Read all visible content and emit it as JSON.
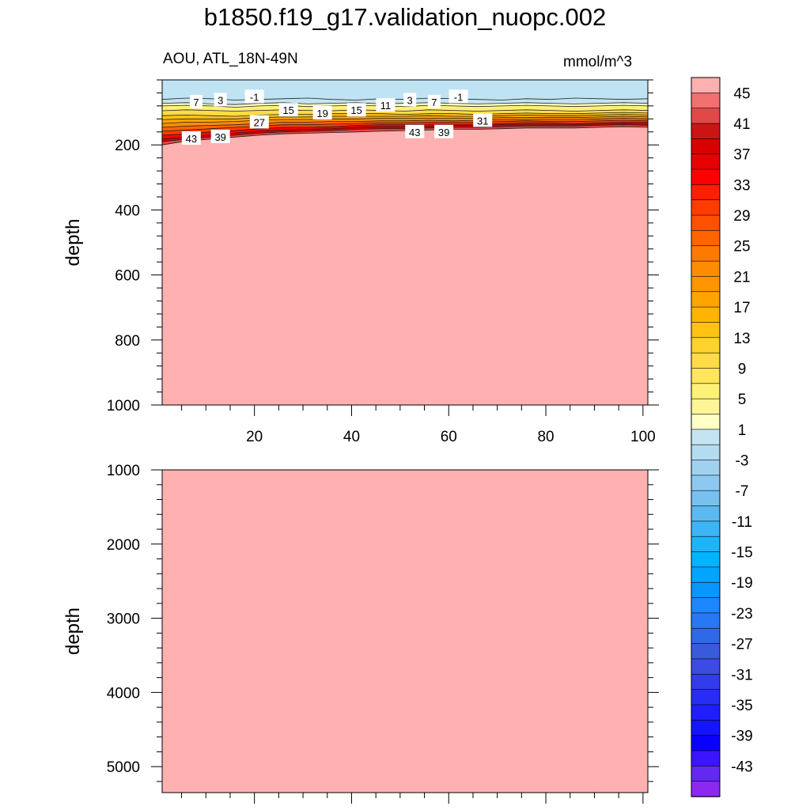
{
  "title": "b1850.f19_g17.validation_nuopc.002",
  "subtitle": {
    "left": "AOU, ATL_18N-49N",
    "right": "mmol/m^3"
  },
  "chart_data": [
    {
      "type": "heatmap",
      "panel": "upper",
      "variable": "AOU",
      "region": "ATL_18N-49N",
      "units": "mmol/m^3",
      "xlabel": "",
      "ylabel": "depth",
      "xlim": [
        1,
        101
      ],
      "ylim": [
        1000,
        0
      ],
      "x_ticks": [
        20,
        40,
        60,
        80,
        100
      ],
      "y_ticks": [
        200,
        400,
        600,
        800,
        1000
      ],
      "fill_color": "#ffb0b0",
      "contours": [
        {
          "level": -1,
          "depth": [
            60,
            56,
            58,
            62,
            60,
            58,
            56,
            60,
            62,
            58,
            60,
            56,
            58,
            60,
            62,
            58,
            60,
            56,
            58,
            60,
            58
          ]
        },
        {
          "level": 1,
          "depth": [
            72,
            70,
            74,
            76,
            72,
            70,
            74,
            72,
            70,
            74,
            72,
            70,
            72,
            74,
            72,
            70,
            72,
            74,
            72,
            70,
            72
          ]
        },
        {
          "level": 3,
          "depth": [
            80,
            78,
            80,
            84,
            80,
            78,
            82,
            80,
            78,
            80,
            82,
            78,
            80,
            82,
            80,
            78,
            80,
            82,
            80,
            78,
            80
          ]
        },
        {
          "level": 7,
          "depth": [
            95,
            92,
            94,
            96,
            94,
            92,
            94,
            95,
            92,
            94,
            96,
            92,
            94,
            96,
            94,
            92,
            94,
            96,
            94,
            92,
            94
          ]
        },
        {
          "level": 11,
          "depth": [
            110,
            108,
            110,
            112,
            108,
            106,
            106,
            104,
            104,
            104,
            106,
            104,
            104,
            106,
            104,
            102,
            104,
            104,
            102,
            100,
            102
          ]
        },
        {
          "level": 15,
          "depth": [
            122,
            120,
            120,
            120,
            116,
            114,
            114,
            112,
            112,
            112,
            112,
            110,
            112,
            112,
            110,
            108,
            110,
            110,
            108,
            106,
            108
          ]
        },
        {
          "level": 19,
          "depth": [
            134,
            130,
            130,
            128,
            124,
            122,
            122,
            120,
            120,
            118,
            118,
            118,
            118,
            118,
            116,
            116,
            116,
            116,
            114,
            112,
            114
          ]
        },
        {
          "level": 23,
          "depth": [
            146,
            142,
            140,
            138,
            134,
            130,
            130,
            128,
            128,
            126,
            126,
            124,
            126,
            124,
            122,
            122,
            122,
            122,
            120,
            118,
            120
          ]
        },
        {
          "level": 27,
          "depth": [
            158,
            154,
            150,
            146,
            142,
            138,
            138,
            136,
            134,
            132,
            132,
            130,
            130,
            130,
            128,
            126,
            128,
            128,
            126,
            124,
            126
          ]
        },
        {
          "level": 31,
          "depth": [
            170,
            166,
            160,
            156,
            150,
            146,
            146,
            144,
            140,
            138,
            138,
            136,
            136,
            136,
            134,
            132,
            132,
            134,
            132,
            130,
            130
          ]
        },
        {
          "level": 35,
          "depth": [
            182,
            176,
            170,
            164,
            158,
            154,
            152,
            150,
            146,
            144,
            144,
            142,
            140,
            140,
            138,
            138,
            138,
            138,
            136,
            134,
            136
          ]
        },
        {
          "level": 39,
          "depth": [
            190,
            182,
            176,
            170,
            164,
            160,
            158,
            156,
            152,
            150,
            150,
            148,
            146,
            146,
            144,
            142,
            142,
            142,
            140,
            138,
            140
          ]
        },
        {
          "level": 43,
          "depth": [
            200,
            188,
            182,
            176,
            170,
            166,
            164,
            162,
            160,
            158,
            156,
            154,
            152,
            152,
            150,
            148,
            148,
            148,
            146,
            144,
            146
          ]
        }
      ],
      "contour_labels": [
        {
          "text": "7",
          "x": 8,
          "depth": 68
        },
        {
          "text": "3",
          "x": 13,
          "depth": 62
        },
        {
          "text": "-1",
          "x": 20,
          "depth": 52
        },
        {
          "text": "15",
          "x": 27,
          "depth": 93
        },
        {
          "text": "19",
          "x": 34,
          "depth": 102
        },
        {
          "text": "15",
          "x": 41,
          "depth": 93
        },
        {
          "text": "11",
          "x": 47,
          "depth": 78
        },
        {
          "text": "3",
          "x": 52,
          "depth": 62
        },
        {
          "text": "7",
          "x": 57,
          "depth": 68
        },
        {
          "text": "-1",
          "x": 62,
          "depth": 52
        },
        {
          "text": "27",
          "x": 21,
          "depth": 130
        },
        {
          "text": "31",
          "x": 67,
          "depth": 125
        },
        {
          "text": "43",
          "x": 7,
          "depth": 180
        },
        {
          "text": "39",
          "x": 13,
          "depth": 175
        },
        {
          "text": "43",
          "x": 53,
          "depth": 160
        },
        {
          "text": "39",
          "x": 59,
          "depth": 160
        }
      ]
    },
    {
      "type": "heatmap",
      "panel": "lower",
      "variable": "AOU",
      "xlabel": "",
      "ylabel": "depth",
      "xlim": [
        1,
        101
      ],
      "ylim": [
        5350,
        1000
      ],
      "x_ticks": [
        20,
        40,
        60,
        80,
        100
      ],
      "y_ticks": [
        1000,
        2000,
        3000,
        4000,
        5000
      ],
      "fill_color": "#ffb0b0"
    }
  ],
  "colorbar": {
    "units": "mmol/m^3",
    "labels": [
      "45",
      "41",
      "37",
      "33",
      "29",
      "25",
      "21",
      "17",
      "13",
      "9",
      "5",
      "1",
      "-3",
      "-7",
      "-11",
      "-15",
      "-19",
      "-23",
      "-27",
      "-31",
      "-35",
      "-39",
      "-43"
    ],
    "colors": [
      "#ffb0b0",
      "#f07070",
      "#e24848",
      "#cc1414",
      "#d90000",
      "#e60000",
      "#ff0000",
      "#ff1f00",
      "#ff3c00",
      "#ff5000",
      "#ff6400",
      "#ff7800",
      "#ff8c00",
      "#ff9600",
      "#ffa500",
      "#ffb400",
      "#ffc314",
      "#ffd22d",
      "#ffdc46",
      "#ffe65a",
      "#fff078",
      "#fff596",
      "#ffffc8",
      "#c4e4f2",
      "#b4dcf0",
      "#a0d2f0",
      "#8cc8f0",
      "#78c0f0",
      "#5ab9f0",
      "#3cb4f5",
      "#1eb4fa",
      "#00b4ff",
      "#00a5ff",
      "#0a96ff",
      "#1e87ff",
      "#2878f5",
      "#3069e6",
      "#3a5adc",
      "#3c4be1",
      "#323ceb",
      "#282df5",
      "#1e1eff",
      "#1414ff",
      "#0a00ff",
      "#3c14ff",
      "#6428f5",
      "#8c28f0"
    ]
  }
}
